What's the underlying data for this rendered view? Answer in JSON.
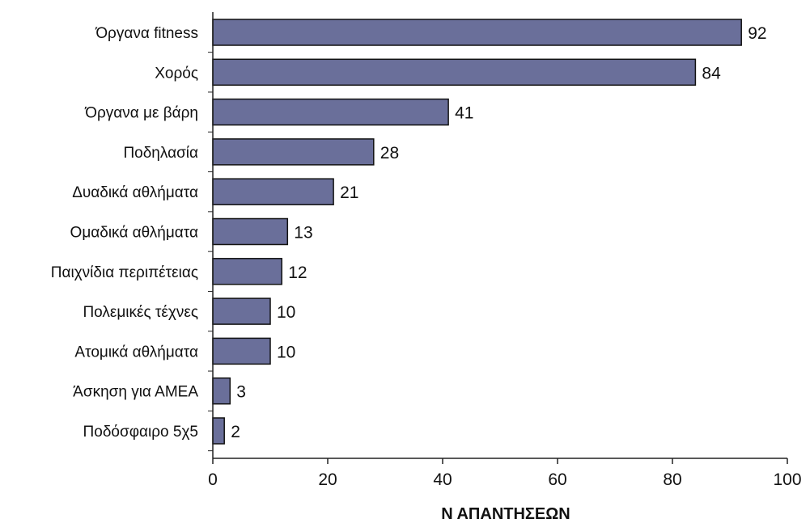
{
  "chart_data": {
    "type": "bar",
    "orientation": "horizontal",
    "categories": [
      "Όργανα fitness",
      "Χορός",
      "Όργανα με βάρη",
      "Ποδηλασία",
      "Δυαδικά αθλήματα",
      "Ομαδικά αθλήματα",
      "Παιχνίδια περιπέτειας",
      "Πολεμικές τέχνες",
      "Ατομικά αθλήματα",
      "Άσκηση για ΑΜΕΑ",
      "Ποδόσφαιρο 5χ5"
    ],
    "values": [
      92,
      84,
      41,
      28,
      21,
      13,
      12,
      10,
      10,
      3,
      2
    ],
    "xlabel": "Ν ΑΠΑΝΤΗΣΕΩΝ",
    "ylabel": "",
    "xlim": [
      0,
      100
    ],
    "xticks": [
      0,
      20,
      40,
      60,
      80,
      100
    ],
    "grid": false,
    "data_labels": true,
    "bar_color": "#6a6f9a",
    "bar_border_color": "#111111"
  }
}
